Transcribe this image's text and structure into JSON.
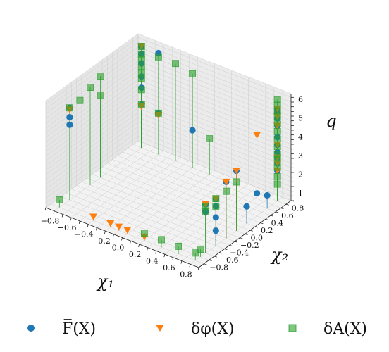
{
  "chart_data": {
    "type": "scatter3d",
    "title": "",
    "xlabel": "χ₁",
    "ylabel": "χ₂",
    "zlabel": "q",
    "xlim": [
      -0.9,
      0.9
    ],
    "ylim": [
      -0.9,
      0.9
    ],
    "zlim": [
      0.6,
      6.3
    ],
    "xticks": [
      -0.8,
      -0.6,
      -0.4,
      -0.2,
      0.0,
      0.2,
      0.4,
      0.6,
      0.8
    ],
    "yticks": [
      -0.8,
      -0.6,
      -0.4,
      -0.2,
      0.0,
      0.2,
      0.4,
      0.6,
      0.8
    ],
    "zticks": [
      1,
      2,
      3,
      4,
      5,
      6
    ],
    "xtick_labels": [
      "−0.8",
      "−0.6",
      "−0.4",
      "−0.2",
      "0.0",
      "0.2",
      "0.4",
      "0.6",
      "0.8"
    ],
    "ytick_labels": [
      "−0.8",
      "−0.6",
      "−0.4",
      "−0.2",
      "0.0",
      "0.2",
      "0.4",
      "0.6",
      "0.8"
    ],
    "ztick_labels": [
      "1",
      "2",
      "3",
      "4",
      "5",
      "6"
    ],
    "grid": true,
    "legend_position": "bottom",
    "series": [
      {
        "name": "F̅(X)",
        "marker": "circle",
        "color": "#1f77b4",
        "points": [
          [
            -0.8,
            -0.6,
            5.5
          ],
          [
            -0.8,
            -0.6,
            5.0
          ],
          [
            -0.8,
            -0.6,
            4.6
          ],
          [
            -0.8,
            0.8,
            6.0
          ],
          [
            -0.8,
            0.8,
            5.6
          ],
          [
            -0.8,
            0.8,
            5.1
          ],
          [
            -0.8,
            0.8,
            4.4
          ],
          [
            -0.8,
            0.8,
            3.8
          ],
          [
            -0.8,
            0.8,
            2.9
          ],
          [
            -0.6,
            0.8,
            6.0
          ],
          [
            -0.6,
            0.8,
            2.8
          ],
          [
            -0.2,
            0.8,
            2.6
          ],
          [
            0.8,
            -0.6,
            3.2
          ],
          [
            0.8,
            -0.6,
            2.8
          ],
          [
            0.8,
            -0.4,
            3.1
          ],
          [
            0.8,
            -0.4,
            2.7
          ],
          [
            0.8,
            -0.4,
            2.1
          ],
          [
            0.8,
            -0.4,
            1.4
          ],
          [
            0.8,
            -0.2,
            3.6
          ],
          [
            0.8,
            0.0,
            3.8
          ],
          [
            0.8,
            0.2,
            1.5
          ],
          [
            0.8,
            0.4,
            1.8
          ],
          [
            0.8,
            0.6,
            1.3
          ],
          [
            0.8,
            0.8,
            5.5
          ],
          [
            0.8,
            0.8,
            5.3
          ],
          [
            0.8,
            0.8,
            5.0
          ],
          [
            0.8,
            0.8,
            4.6
          ],
          [
            0.8,
            0.8,
            4.0
          ],
          [
            0.8,
            0.8,
            3.6
          ],
          [
            0.8,
            0.8,
            3.2
          ],
          [
            0.8,
            0.8,
            2.9
          ],
          [
            0.8,
            0.8,
            2.6
          ],
          [
            0.8,
            0.8,
            2.2
          ]
        ]
      },
      {
        "name": "δφ(X)",
        "marker": "triangle_down",
        "color": "#ff7f0e",
        "points": [
          [
            -0.8,
            -0.6,
            5.4
          ],
          [
            -0.8,
            0.8,
            6.0
          ],
          [
            -0.8,
            0.8,
            2.8
          ],
          [
            -0.6,
            0.8,
            2.7
          ],
          [
            0.8,
            -0.6,
            3.2
          ],
          [
            0.8,
            -0.4,
            3.1
          ],
          [
            0.8,
            -0.2,
            3.6
          ],
          [
            0.8,
            0.0,
            3.8
          ],
          [
            0.8,
            0.4,
            4.9
          ],
          [
            0.8,
            0.8,
            5.5
          ],
          [
            0.8,
            0.8,
            5.1
          ],
          [
            0.8,
            0.8,
            4.6
          ],
          [
            0.8,
            0.8,
            3.6
          ],
          [
            0.8,
            0.8,
            2.9
          ],
          [
            0.8,
            0.8,
            2.6
          ],
          [
            0.8,
            0.8,
            2.2
          ],
          [
            -0.4,
            -0.8,
            0.8
          ],
          [
            -0.2,
            -0.8,
            0.8
          ],
          [
            -0.1,
            -0.8,
            0.8
          ],
          [
            0.0,
            -0.8,
            0.8
          ],
          [
            0.2,
            -0.8,
            0.8
          ]
        ]
      },
      {
        "name": "δA(X)",
        "marker": "square",
        "color": "#2ca02c",
        "points": [
          [
            -0.8,
            -0.8,
            1.0
          ],
          [
            -0.8,
            -0.6,
            5.5
          ],
          [
            -0.8,
            -0.4,
            5.5
          ],
          [
            -0.8,
            -0.2,
            5.8
          ],
          [
            -0.8,
            0.0,
            5.0
          ],
          [
            -0.8,
            0.0,
            6.0
          ],
          [
            -0.8,
            0.8,
            6.0
          ],
          [
            -0.8,
            0.8,
            5.6
          ],
          [
            -0.8,
            0.8,
            5.3
          ],
          [
            -0.8,
            0.8,
            4.9
          ],
          [
            -0.8,
            0.8,
            4.6
          ],
          [
            -0.8,
            0.8,
            4.3
          ],
          [
            -0.8,
            0.8,
            3.7
          ],
          [
            -0.8,
            0.8,
            2.9
          ],
          [
            -0.6,
            0.8,
            5.8
          ],
          [
            -0.6,
            0.8,
            2.8
          ],
          [
            -0.4,
            0.8,
            5.8
          ],
          [
            -0.2,
            0.8,
            5.6
          ],
          [
            0.0,
            0.8,
            2.5
          ],
          [
            0.2,
            -0.8,
            1.0
          ],
          [
            0.4,
            -0.8,
            1.0
          ],
          [
            0.6,
            -0.8,
            1.0
          ],
          [
            0.8,
            -0.8,
            1.0
          ],
          [
            0.8,
            -0.7,
            1.0
          ],
          [
            0.8,
            -0.6,
            3.1
          ],
          [
            0.8,
            -0.6,
            2.8
          ],
          [
            0.8,
            -0.4,
            3.1
          ],
          [
            0.8,
            -0.4,
            2.7
          ],
          [
            0.8,
            -0.2,
            3.1
          ],
          [
            0.8,
            0.0,
            3.2
          ],
          [
            0.8,
            0.8,
            6.0
          ],
          [
            0.8,
            0.8,
            5.7
          ],
          [
            0.8,
            0.8,
            5.4
          ],
          [
            0.8,
            0.8,
            5.1
          ],
          [
            0.8,
            0.8,
            4.7
          ],
          [
            0.8,
            0.8,
            4.3
          ],
          [
            0.8,
            0.8,
            3.9
          ],
          [
            0.8,
            0.8,
            3.5
          ],
          [
            0.8,
            0.8,
            3.1
          ],
          [
            0.8,
            0.8,
            2.8
          ],
          [
            0.8,
            0.8,
            2.4
          ],
          [
            0.8,
            0.8,
            1.9
          ],
          [
            0.8,
            0.8,
            1.5
          ]
        ]
      }
    ]
  },
  "legend": {
    "entries": [
      {
        "label": "F̅(X)",
        "marker": "circle",
        "color": "#1f77b4"
      },
      {
        "label": "δφ(X)",
        "marker": "triangle_down",
        "color": "#ff7f0e"
      },
      {
        "label": "δA(X)",
        "marker": "square",
        "color": "#2ca02c"
      }
    ]
  }
}
